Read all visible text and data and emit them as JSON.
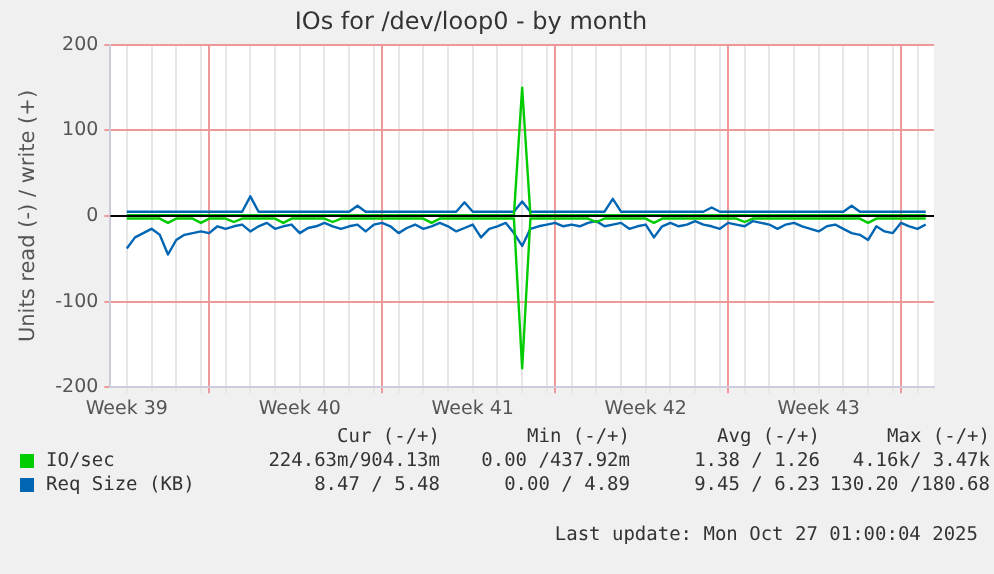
{
  "chart_data": {
    "type": "line",
    "title": "IOs for /dev/loop0 - by month",
    "ylabel": "Units read (-) / write (+)",
    "categories": [
      null,
      null,
      "Week 39",
      null,
      null,
      null,
      null,
      null,
      null,
      null,
      null,
      null,
      null,
      null,
      null,
      null,
      null,
      null,
      null,
      null,
      null,
      null,
      null,
      "Week 40",
      null,
      null,
      null,
      null,
      null,
      null,
      null,
      null,
      null,
      null,
      null,
      null,
      null,
      null,
      null,
      null,
      null,
      null,
      null,
      null,
      "Week 41",
      null,
      null,
      null,
      null,
      null,
      null,
      null,
      null,
      null,
      null,
      null,
      null,
      null,
      null,
      null,
      null,
      null,
      null,
      null,
      null,
      "Week 42",
      null,
      null,
      null,
      null,
      null,
      null,
      null,
      null,
      null,
      null,
      null,
      null,
      null,
      null,
      null,
      null,
      null,
      null,
      null,
      null,
      "Week 43",
      null,
      null,
      null,
      null,
      null,
      null,
      null,
      null,
      null,
      null,
      null,
      null,
      null,
      null
    ],
    "ylim": [
      -200,
      200
    ],
    "yticks": [
      -200,
      -100,
      0,
      100,
      200
    ],
    "grid": true,
    "legend": "bottom",
    "marker": "none",
    "line_style": "solid",
    "ref_lines": [
      {
        "axis": "y",
        "value": 0,
        "color": "#000000"
      }
    ],
    "series": [
      {
        "name": "IO/sec",
        "color": "#00cc00",
        "values": [
          null,
          null,
          1,
          1,
          1,
          1,
          1,
          1,
          1,
          1,
          1,
          1,
          1,
          1,
          1,
          1,
          1,
          1,
          1,
          1,
          1,
          1,
          1,
          1,
          1,
          1,
          1,
          1,
          1,
          1,
          1,
          1,
          1,
          1,
          1,
          1,
          1,
          1,
          1,
          1,
          1,
          1,
          1,
          1,
          1,
          1,
          1,
          1,
          1,
          1,
          150,
          1,
          1,
          1,
          1,
          1,
          1,
          1,
          1,
          1,
          1,
          1,
          1,
          1,
          1,
          1,
          1,
          1,
          1,
          1,
          1,
          1,
          1,
          1,
          1,
          1,
          1,
          1,
          1,
          1,
          1,
          1,
          1,
          1,
          1,
          1,
          1,
          1,
          1,
          1,
          1,
          1,
          1,
          1,
          1,
          1,
          1,
          1,
          1,
          1,
          null
        ]
      },
      {
        "color": "#00cc00",
        "values": [
          null,
          null,
          -3,
          -3,
          -3,
          -3,
          -3,
          -8,
          -3,
          -3,
          -3,
          -8,
          -3,
          -3,
          -3,
          -7,
          -3,
          -3,
          -3,
          -3,
          -3,
          -8,
          -3,
          -3,
          -3,
          -3,
          -3,
          -7,
          -3,
          -3,
          -3,
          -3,
          -3,
          -3,
          -3,
          -3,
          -3,
          -3,
          -3,
          -8,
          -3,
          -3,
          -3,
          -3,
          -3,
          -3,
          -3,
          -3,
          -3,
          -3,
          -178,
          -3,
          -3,
          -3,
          -3,
          -3,
          -3,
          -3,
          -3,
          -7,
          -3,
          -3,
          -3,
          -3,
          -3,
          -3,
          -8,
          -3,
          -3,
          -3,
          -3,
          -3,
          -3,
          -3,
          -3,
          -3,
          -3,
          -7,
          -3,
          -3,
          -3,
          -3,
          -3,
          -3,
          -3,
          -3,
          -3,
          -3,
          -3,
          -3,
          -3,
          -3,
          -8,
          -3,
          -3,
          -3,
          -3,
          -3,
          -3,
          -3,
          null
        ]
      },
      {
        "name": "Req Size (KB)",
        "color": "#0066b3",
        "values": [
          null,
          null,
          5,
          5,
          5,
          5,
          5,
          5,
          5,
          5,
          5,
          5,
          5,
          5,
          5,
          5,
          5,
          23,
          5,
          5,
          5,
          5,
          5,
          5,
          5,
          5,
          5,
          5,
          5,
          5,
          12,
          5,
          5,
          5,
          5,
          5,
          5,
          5,
          5,
          5,
          5,
          5,
          5,
          16,
          5,
          5,
          5,
          5,
          5,
          5,
          17,
          5,
          5,
          5,
          5,
          5,
          5,
          5,
          5,
          5,
          5,
          20,
          5,
          5,
          5,
          5,
          5,
          5,
          5,
          5,
          5,
          5,
          5,
          10,
          5,
          5,
          5,
          5,
          5,
          5,
          5,
          5,
          5,
          5,
          5,
          5,
          5,
          5,
          5,
          5,
          12,
          5,
          5,
          5,
          5,
          5,
          5,
          5,
          5,
          5,
          null
        ]
      },
      {
        "color": "#0066b3",
        "values": [
          null,
          null,
          -38,
          -25,
          -20,
          -15,
          -22,
          -45,
          -28,
          -22,
          -20,
          -18,
          -20,
          -12,
          -15,
          -12,
          -10,
          -18,
          -12,
          -8,
          -15,
          -12,
          -10,
          -20,
          -14,
          -12,
          -8,
          -12,
          -15,
          -12,
          -10,
          -18,
          -10,
          -8,
          -12,
          -20,
          -14,
          -10,
          -15,
          -12,
          -8,
          -12,
          -18,
          -14,
          -10,
          -25,
          -15,
          -12,
          -8,
          -20,
          -35,
          -15,
          -12,
          -10,
          -8,
          -12,
          -10,
          -12,
          -8,
          -6,
          -12,
          -10,
          -8,
          -15,
          -12,
          -10,
          -25,
          -12,
          -8,
          -12,
          -10,
          -6,
          -10,
          -12,
          -15,
          -8,
          -10,
          -12,
          -6,
          -8,
          -10,
          -15,
          -10,
          -8,
          -12,
          -15,
          -18,
          -12,
          -10,
          -15,
          -20,
          -22,
          -28,
          -12,
          -18,
          -20,
          -8,
          -12,
          -15,
          -10,
          null
        ]
      }
    ],
    "annotations": [
      "Cur (-/+)",
      "Min (-/+)",
      "Avg (-/+)",
      "Max (-/+)",
      "224.63m/904.13m",
      "0.00 /437.92m",
      "1.38 / 1.26",
      "4.16k/ 3.47k",
      "8.47 / 5.48",
      "0.00 / 4.89",
      "9.45 / 6.23",
      "130.20 /180.68",
      "Last update: Mon Oct 27 01:00:04 2025"
    ]
  }
}
